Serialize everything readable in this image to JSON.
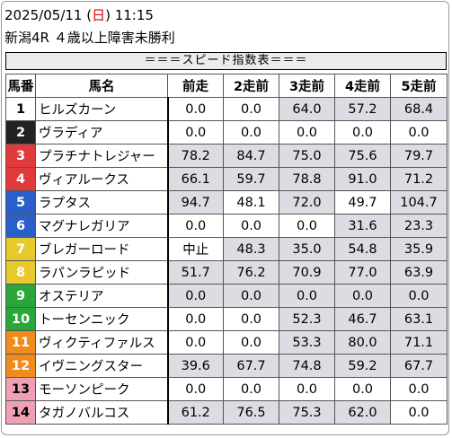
{
  "header": {
    "date_prefix": "2025/05/11 (",
    "weekday": "日",
    "date_suffix": ") 11:15",
    "race": "新潟4R ４歳以上障害未勝利"
  },
  "banner": "＝＝＝スピード指数表＝＝＝",
  "columns": [
    "馬番",
    "馬名",
    "前走",
    "2走前",
    "3走前",
    "4走前",
    "5走前"
  ],
  "colors": {
    "frame1": "#ffffff",
    "frame2": "#222222",
    "frame3": "#e03a3a",
    "frame4": "#2a5fc9",
    "frame5": "#e8c92a",
    "frame6": "#2aa63a",
    "frame7": "#f08c1e",
    "frame8": "#f0a0b4",
    "highlight": "#dcdce3"
  },
  "rows": [
    {
      "no": "1",
      "name": "ヒルズカーン",
      "frame": 1,
      "vals": [
        "0.0",
        "0.0",
        "64.0",
        "57.2",
        "68.4"
      ],
      "hi": [
        false,
        false,
        true,
        true,
        true
      ]
    },
    {
      "no": "2",
      "name": "ヴラディア",
      "frame": 2,
      "vals": [
        "0.0",
        "0.0",
        "0.0",
        "0.0",
        "0.0"
      ],
      "hi": [
        false,
        false,
        false,
        false,
        false
      ]
    },
    {
      "no": "3",
      "name": "プラチナトレジャー",
      "frame": 3,
      "vals": [
        "78.2",
        "84.7",
        "75.0",
        "75.6",
        "79.7"
      ],
      "hi": [
        true,
        true,
        true,
        true,
        true
      ]
    },
    {
      "no": "4",
      "name": "ヴィアルークス",
      "frame": 3,
      "vals": [
        "66.1",
        "59.7",
        "78.8",
        "91.0",
        "71.2"
      ],
      "hi": [
        true,
        true,
        true,
        true,
        true
      ]
    },
    {
      "no": "5",
      "name": "ラプタス",
      "frame": 4,
      "vals": [
        "94.7",
        "48.1",
        "72.0",
        "49.7",
        "104.7"
      ],
      "hi": [
        true,
        false,
        true,
        false,
        true
      ]
    },
    {
      "no": "6",
      "name": "マグナレガリア",
      "frame": 4,
      "vals": [
        "0.0",
        "0.0",
        "0.0",
        "31.6",
        "23.3"
      ],
      "hi": [
        false,
        false,
        false,
        true,
        true
      ]
    },
    {
      "no": "7",
      "name": "ブレガーロード",
      "frame": 5,
      "vals": [
        "中止",
        "48.3",
        "35.0",
        "54.8",
        "35.9"
      ],
      "hi": [
        false,
        true,
        true,
        true,
        true
      ]
    },
    {
      "no": "8",
      "name": "ラパンラピッド",
      "frame": 5,
      "vals": [
        "51.7",
        "76.2",
        "70.9",
        "77.0",
        "63.9"
      ],
      "hi": [
        true,
        true,
        true,
        true,
        true
      ]
    },
    {
      "no": "9",
      "name": "オステリア",
      "frame": 6,
      "vals": [
        "0.0",
        "0.0",
        "0.0",
        "0.0",
        "0.0"
      ],
      "hi": [
        true,
        true,
        true,
        true,
        true
      ]
    },
    {
      "no": "10",
      "name": "トーセンニック",
      "frame": 6,
      "vals": [
        "0.0",
        "0.0",
        "52.3",
        "46.7",
        "63.1"
      ],
      "hi": [
        false,
        false,
        true,
        true,
        true
      ]
    },
    {
      "no": "11",
      "name": "ヴィクティファルス",
      "frame": 7,
      "vals": [
        "0.0",
        "0.0",
        "53.3",
        "80.0",
        "71.1"
      ],
      "hi": [
        false,
        false,
        true,
        true,
        true
      ]
    },
    {
      "no": "12",
      "name": "イヴニングスター",
      "frame": 7,
      "vals": [
        "39.6",
        "67.7",
        "74.8",
        "59.2",
        "67.7"
      ],
      "hi": [
        true,
        true,
        true,
        true,
        true
      ]
    },
    {
      "no": "13",
      "name": "モーソンピーク",
      "frame": 8,
      "vals": [
        "0.0",
        "0.0",
        "0.0",
        "0.0",
        "0.0"
      ],
      "hi": [
        false,
        false,
        false,
        false,
        false
      ]
    },
    {
      "no": "14",
      "name": "タガノバルコス",
      "frame": 8,
      "vals": [
        "61.2",
        "76.5",
        "75.3",
        "62.0",
        "0.0"
      ],
      "hi": [
        true,
        true,
        true,
        true,
        false
      ]
    }
  ]
}
